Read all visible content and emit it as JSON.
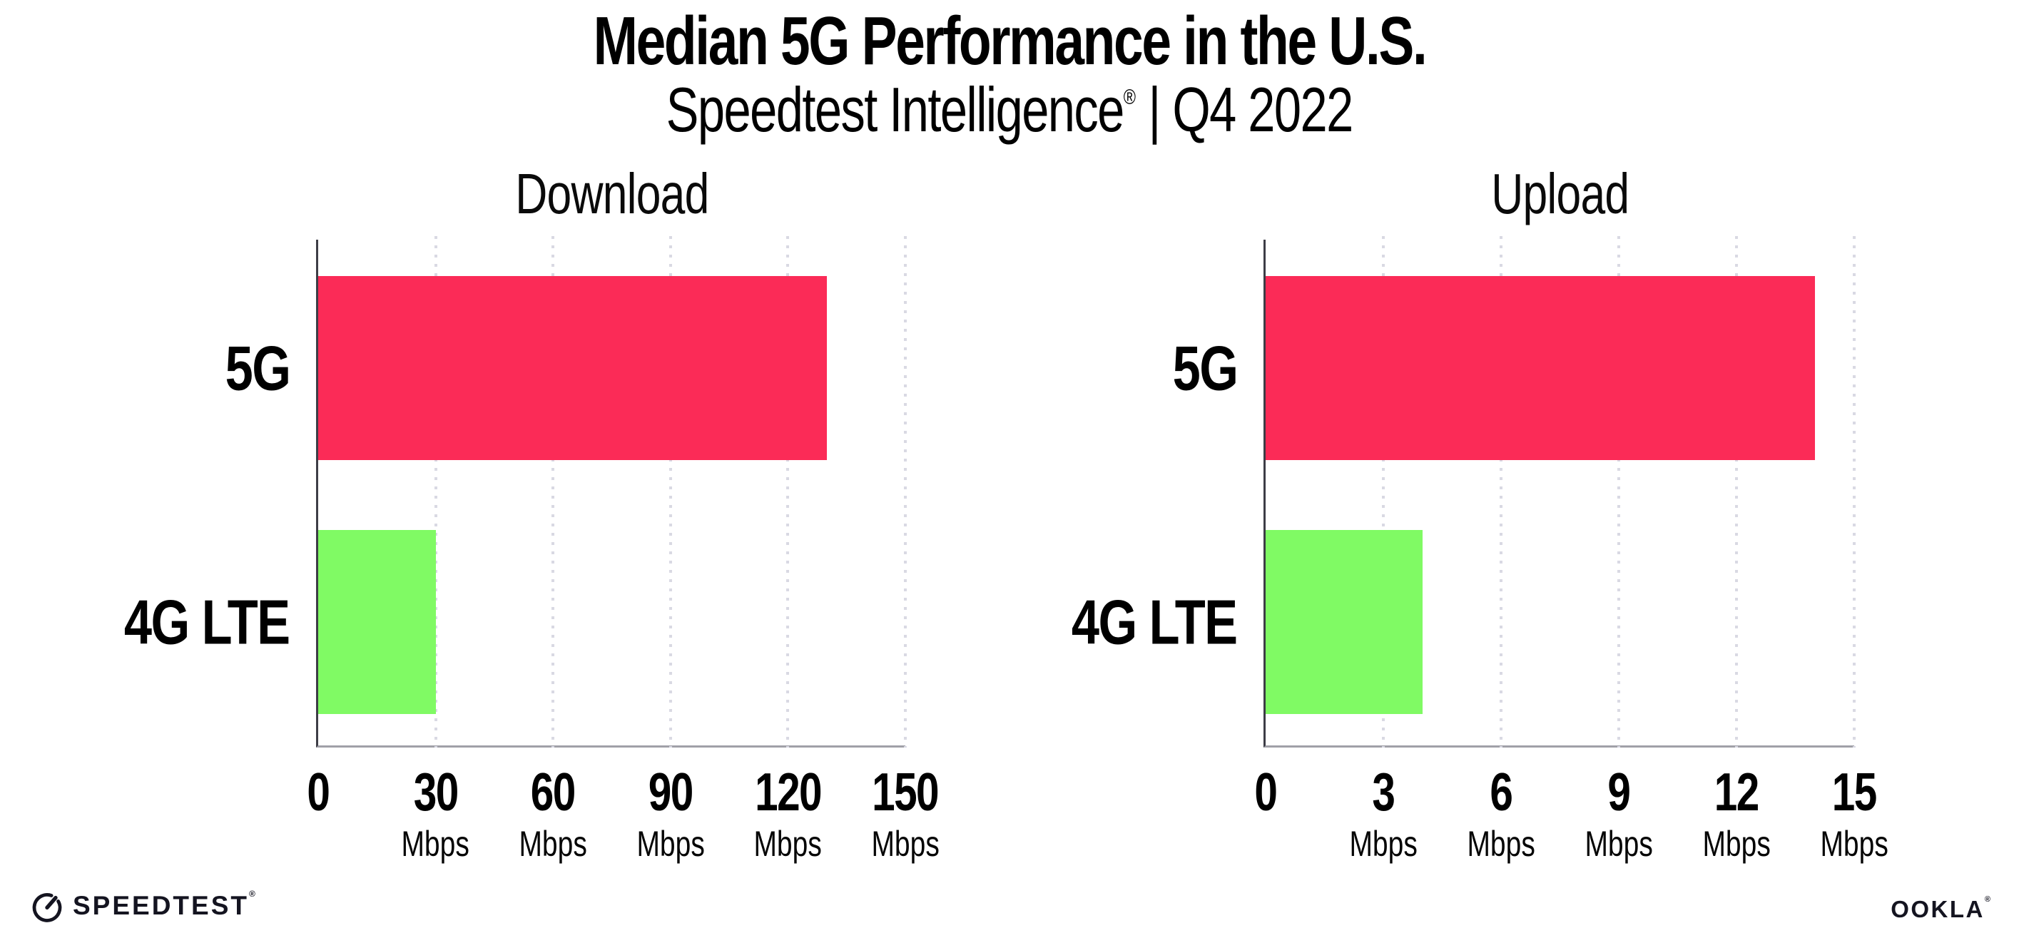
{
  "page": {
    "background": "#ffffff"
  },
  "header": {
    "title": "Median 5G Performance in the U.S.",
    "subtitle_brand": "Speedtest Intelligence",
    "subtitle_reg": "®",
    "subtitle_rest": " | Q4 2022"
  },
  "chart_data": {
    "type": "bar",
    "orientation": "horizontal",
    "grid": "vertical-dotted",
    "categories": [
      "5G",
      "4G LTE"
    ],
    "unit": "Mbps",
    "colors": {
      "5G": "#fb2b57",
      "4G LTE": "#80fa64"
    },
    "axis_colors": {
      "y_axis": "#3d3d46",
      "x_axis": "#a0a0a8",
      "gridline": "#d9d9e3"
    },
    "charts": [
      {
        "title": "Download",
        "values": [
          130,
          30
        ],
        "xlim": [
          0,
          150
        ],
        "xticks": [
          0,
          30,
          60,
          90,
          120,
          150
        ]
      },
      {
        "title": "Upload",
        "values": [
          14,
          4
        ],
        "xlim": [
          0,
          15
        ],
        "xticks": [
          0,
          3,
          6,
          9,
          12,
          15
        ]
      }
    ]
  },
  "footer": {
    "speedtest_label": "SPEEDTEST",
    "speedtest_reg": "®",
    "ookla_label": "OOKLA",
    "ookla_reg": "®"
  }
}
